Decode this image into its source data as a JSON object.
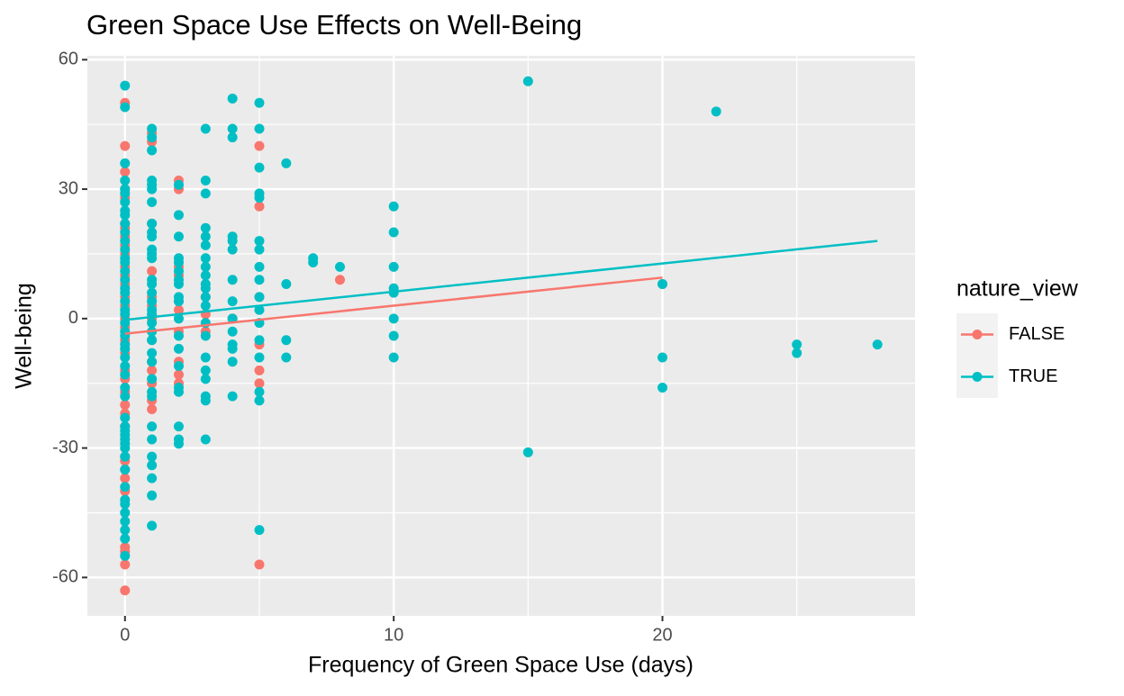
{
  "chart_data": {
    "type": "scatter",
    "title": "Green Space Use Effects on Well-Being",
    "x_label": "Frequency of Green Space Use (days)",
    "y_label": "Well-being",
    "legend_title": "nature_view",
    "legend_position": "right",
    "grid": true,
    "xlim": [
      -1.4,
      29.4
    ],
    "ylim": [
      -68.9,
      60.9
    ],
    "xticks": [
      0,
      10,
      20
    ],
    "yticks": [
      -60,
      -30,
      0,
      30,
      60
    ],
    "xminor": [
      5,
      15,
      25
    ],
    "yminor": [
      -45,
      -15,
      15,
      45
    ],
    "series": [
      {
        "name": "FALSE",
        "color": "#F8766D",
        "x": [
          0,
          0,
          0,
          0,
          0,
          0,
          0,
          0,
          0,
          0,
          0,
          0,
          0,
          0,
          0,
          0,
          0,
          0,
          0,
          0,
          0,
          0,
          0,
          0,
          0,
          0,
          0,
          0,
          0,
          0,
          0,
          0,
          0,
          0,
          1,
          1,
          1,
          1,
          1,
          1,
          1,
          1,
          1,
          1,
          1,
          1,
          1,
          2,
          2,
          2,
          2,
          2,
          2,
          2,
          2,
          2,
          2,
          3,
          3,
          3,
          4,
          4,
          5,
          5,
          5,
          5,
          5,
          5,
          5,
          8,
          20
        ],
        "y": [
          50,
          40,
          34,
          30,
          28,
          22,
          21,
          19,
          17,
          15,
          12,
          10,
          8,
          5,
          3,
          0,
          -2,
          -5,
          -8,
          -12,
          -14,
          -17,
          -20,
          -22,
          -25,
          -32,
          -33,
          -35,
          -37,
          -40,
          -53,
          -54,
          -57,
          -63,
          43,
          41,
          22,
          11,
          5,
          3,
          0,
          -5,
          -10,
          -12,
          -15,
          -19,
          -21,
          32,
          30,
          12,
          10,
          4,
          2,
          -3,
          -10,
          -13,
          -15,
          5,
          1,
          -3,
          0,
          0,
          40,
          26,
          5,
          -6,
          -12,
          -15,
          -57,
          9,
          8
        ],
        "fit": {
          "x": [
            0,
            20
          ],
          "y": [
            -3.5,
            9.5
          ]
        }
      },
      {
        "name": "TRUE",
        "color": "#00BFC4",
        "x": [
          0,
          0,
          0,
          0,
          0,
          0,
          0,
          0,
          0,
          0,
          0,
          0,
          0,
          0,
          0,
          0,
          0,
          0,
          0,
          0,
          0,
          0,
          0,
          0,
          0,
          0,
          0,
          0,
          0,
          0,
          0,
          0,
          0,
          0,
          0,
          0,
          0,
          0,
          0,
          0,
          0,
          0,
          0,
          0,
          0,
          0,
          0,
          0,
          0,
          1,
          1,
          1,
          1,
          1,
          1,
          1,
          1,
          1,
          1,
          1,
          1,
          1,
          1,
          1,
          1,
          1,
          1,
          1,
          1,
          1,
          1,
          1,
          1,
          1,
          1,
          1,
          1,
          1,
          1,
          1,
          1,
          1,
          1,
          2,
          2,
          2,
          2,
          2,
          2,
          2,
          2,
          2,
          2,
          2,
          2,
          2,
          2,
          2,
          2,
          2,
          2,
          2,
          3,
          3,
          3,
          3,
          3,
          3,
          3,
          3,
          3,
          3,
          3,
          3,
          3,
          3,
          3,
          3,
          3,
          3,
          3,
          3,
          3,
          4,
          4,
          4,
          4,
          4,
          4,
          4,
          4,
          4,
          4,
          4,
          4,
          4,
          4,
          5,
          5,
          5,
          5,
          5,
          5,
          5,
          5,
          5,
          5,
          5,
          5,
          5,
          5,
          5,
          5,
          5,
          6,
          6,
          6,
          6,
          7,
          7,
          8,
          10,
          10,
          10,
          10,
          10,
          10,
          10,
          10,
          15,
          15,
          20,
          20,
          20,
          22,
          25,
          25,
          28
        ],
        "y": [
          54,
          49,
          36,
          32,
          30,
          29,
          27,
          25,
          24,
          22,
          20,
          18,
          16,
          14,
          13,
          11,
          9,
          7,
          6,
          4,
          2,
          1,
          -1,
          -3,
          -4,
          -6,
          -7,
          -9,
          -11,
          -13,
          -16,
          -18,
          -23,
          -25,
          -26,
          -27,
          -28,
          -29,
          -30,
          -32,
          -35,
          -39,
          -42,
          -43,
          -45,
          -47,
          -49,
          -51,
          -55,
          44,
          42,
          39,
          32,
          31,
          30,
          27,
          22,
          20,
          19,
          16,
          15,
          14,
          9,
          8,
          6,
          4,
          2,
          1,
          -1,
          -3,
          -5,
          -8,
          -10,
          -14,
          -17,
          -18,
          -25,
          -28,
          -32,
          -34,
          -37,
          -41,
          -48,
          31,
          24,
          19,
          14,
          13,
          11,
          9,
          8,
          5,
          4,
          0,
          -4,
          -7,
          -11,
          -16,
          -17,
          -25,
          -28,
          -29,
          44,
          32,
          29,
          21,
          19,
          17,
          14,
          12,
          10,
          8,
          7,
          5,
          3,
          -1,
          -4,
          -9,
          -12,
          -14,
          -18,
          -19,
          -28,
          51,
          44,
          42,
          19,
          18,
          16,
          9,
          4,
          0,
          -3,
          -6,
          -7,
          -10,
          -18,
          50,
          44,
          35,
          29,
          28,
          18,
          16,
          12,
          9,
          5,
          2,
          -1,
          -5,
          -9,
          -17,
          -19,
          -49,
          36,
          8,
          -5,
          -9,
          14,
          13,
          12,
          26,
          20,
          12,
          7,
          6,
          0,
          -4,
          -9,
          55,
          -31,
          8,
          -9,
          -16,
          48,
          -6,
          -8,
          -6
        ],
        "fit": {
          "x": [
            0,
            28
          ],
          "y": [
            -0.3,
            18
          ]
        }
      }
    ]
  }
}
